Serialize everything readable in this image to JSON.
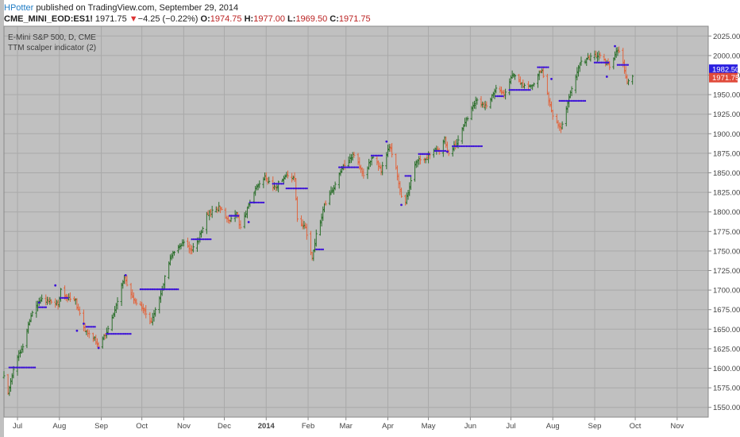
{
  "header": {
    "author": "HPotter",
    "published": "published on TradingView.com, September 29, 2014",
    "symbol": "CME_MINI_EOD:ES1!",
    "last": "1971.75",
    "change": "−4.25 (−0.22%)",
    "o_label": "O:",
    "o_value": "1974.75",
    "h_label": "H:",
    "h_value": "1977.00",
    "l_label": "L:",
    "l_value": "1969.50",
    "c_label": "C:",
    "c_value": "1971.75"
  },
  "overlay": {
    "series_title": "E-Mini S&P 500, D, CME",
    "indicator_title": "TTM scalper indicator (2)"
  },
  "chart_data": {
    "type": "ohlc",
    "y_range": [
      1537.5,
      2037.5
    ],
    "y_ticks": [
      1550,
      1575,
      1600,
      1625,
      1650,
      1675,
      1700,
      1725,
      1750,
      1775,
      1800,
      1825,
      1850,
      1875,
      1900,
      1925,
      1950,
      1975,
      2000,
      2025
    ],
    "y_tick_labels": [
      "1550.00",
      "1575.00",
      "1600.00",
      "1625.00",
      "1650.00",
      "1675.00",
      "1700.00",
      "1725.00",
      "1750.00",
      "1775.00",
      "1800.00",
      "1825.00",
      "1850.00",
      "1875.00",
      "1900.00",
      "1925.00",
      "1950.00",
      "1975.00",
      "2000.00",
      "2025.00"
    ],
    "x_range": [
      "2013-06-21",
      "2014-11-24"
    ],
    "x_ticks": [
      {
        "date": "2013-07-01",
        "label": "Jul",
        "bold": false
      },
      {
        "date": "2013-08-01",
        "label": "Aug",
        "bold": false
      },
      {
        "date": "2013-09-01",
        "label": "Sep",
        "bold": false
      },
      {
        "date": "2013-10-01",
        "label": "Oct",
        "bold": false
      },
      {
        "date": "2013-11-01",
        "label": "Nov",
        "bold": false
      },
      {
        "date": "2013-12-01",
        "label": "Dec",
        "bold": false
      },
      {
        "date": "2014-01-01",
        "label": "2014",
        "bold": true
      },
      {
        "date": "2014-02-01",
        "label": "Feb",
        "bold": false
      },
      {
        "date": "2014-03-01",
        "label": "Mar",
        "bold": false
      },
      {
        "date": "2014-04-01",
        "label": "Apr",
        "bold": false
      },
      {
        "date": "2014-05-01",
        "label": "May",
        "bold": false
      },
      {
        "date": "2014-06-01",
        "label": "Jun",
        "bold": false
      },
      {
        "date": "2014-07-01",
        "label": "Jul",
        "bold": false
      },
      {
        "date": "2014-08-01",
        "label": "Aug",
        "bold": false
      },
      {
        "date": "2014-09-01",
        "label": "Sep",
        "bold": false
      },
      {
        "date": "2014-10-01",
        "label": "Oct",
        "bold": false
      },
      {
        "date": "2014-11-01",
        "label": "Nov",
        "bold": false
      }
    ],
    "close_path": [
      [
        "2013-06-21",
        1588
      ],
      [
        "2013-06-24",
        1570
      ],
      [
        "2013-06-28",
        1600
      ],
      [
        "2013-07-05",
        1630
      ],
      [
        "2013-07-12",
        1672
      ],
      [
        "2013-07-18",
        1688
      ],
      [
        "2013-07-24",
        1686
      ],
      [
        "2013-07-31",
        1682
      ],
      [
        "2013-08-02",
        1700
      ],
      [
        "2013-08-07",
        1690
      ],
      [
        "2013-08-13",
        1686
      ],
      [
        "2013-08-19",
        1650
      ],
      [
        "2013-08-27",
        1638
      ],
      [
        "2013-08-30",
        1626
      ],
      [
        "2013-09-06",
        1650
      ],
      [
        "2013-09-12",
        1680
      ],
      [
        "2013-09-18",
        1718
      ],
      [
        "2013-09-24",
        1690
      ],
      [
        "2013-10-01",
        1678
      ],
      [
        "2013-10-08",
        1658
      ],
      [
        "2013-10-16",
        1702
      ],
      [
        "2013-10-22",
        1742
      ],
      [
        "2013-10-28",
        1755
      ],
      [
        "2013-11-01",
        1760
      ],
      [
        "2013-11-07",
        1750
      ],
      [
        "2013-11-12",
        1766
      ],
      [
        "2013-11-18",
        1795
      ],
      [
        "2013-11-27",
        1806
      ],
      [
        "2013-12-05",
        1788
      ],
      [
        "2013-12-10",
        1800
      ],
      [
        "2013-12-13",
        1778
      ],
      [
        "2013-12-18",
        1805
      ],
      [
        "2013-12-24",
        1830
      ],
      [
        "2013-12-31",
        1845
      ],
      [
        "2014-01-06",
        1830
      ],
      [
        "2014-01-10",
        1836
      ],
      [
        "2014-01-15",
        1846
      ],
      [
        "2014-01-22",
        1841
      ],
      [
        "2014-01-24",
        1790
      ],
      [
        "2014-01-30",
        1780
      ],
      [
        "2014-02-04",
        1740
      ],
      [
        "2014-02-07",
        1770
      ],
      [
        "2014-02-13",
        1808
      ],
      [
        "2014-02-20",
        1832
      ],
      [
        "2014-02-27",
        1858
      ],
      [
        "2014-03-07",
        1875
      ],
      [
        "2014-03-14",
        1845
      ],
      [
        "2014-03-21",
        1872
      ],
      [
        "2014-03-27",
        1852
      ],
      [
        "2014-04-02",
        1885
      ],
      [
        "2014-04-07",
        1856
      ],
      [
        "2014-04-11",
        1818
      ],
      [
        "2014-04-14",
        1812
      ],
      [
        "2014-04-22",
        1866
      ],
      [
        "2014-04-28",
        1866
      ],
      [
        "2014-05-05",
        1880
      ],
      [
        "2014-05-09",
        1876
      ],
      [
        "2014-05-13",
        1894
      ],
      [
        "2014-05-16",
        1872
      ],
      [
        "2014-05-22",
        1890
      ],
      [
        "2014-05-29",
        1918
      ],
      [
        "2014-06-06",
        1945
      ],
      [
        "2014-06-13",
        1933
      ],
      [
        "2014-06-20",
        1958
      ],
      [
        "2014-06-26",
        1950
      ],
      [
        "2014-07-03",
        1978
      ],
      [
        "2014-07-10",
        1960
      ],
      [
        "2014-07-17",
        1962
      ],
      [
        "2014-07-24",
        1983
      ],
      [
        "2014-07-31",
        1927
      ],
      [
        "2014-08-07",
        1906
      ],
      [
        "2014-08-14",
        1952
      ],
      [
        "2014-08-21",
        1990
      ],
      [
        "2014-08-28",
        1996
      ],
      [
        "2014-09-05",
        2002
      ],
      [
        "2014-09-12",
        1985
      ],
      [
        "2014-09-18",
        2008
      ],
      [
        "2014-09-22",
        1990
      ],
      [
        "2014-09-25",
        1966
      ],
      [
        "2014-09-29",
        1971.75
      ]
    ],
    "scalper_segments": [
      {
        "from": "2013-06-25",
        "to": "2013-07-15",
        "y": 1601
      },
      {
        "from": "2013-07-17",
        "to": "2013-07-22",
        "y": 1678
      },
      {
        "from": "2013-08-02",
        "to": "2013-08-07",
        "y": 1690
      },
      {
        "from": "2013-08-21",
        "to": "2013-08-28",
        "y": 1653
      },
      {
        "from": "2013-09-05",
        "to": "2013-09-23",
        "y": 1644
      },
      {
        "from": "2013-09-30",
        "to": "2013-10-28",
        "y": 1701
      },
      {
        "from": "2013-11-07",
        "to": "2013-11-21",
        "y": 1765
      },
      {
        "from": "2013-12-05",
        "to": "2013-12-12",
        "y": 1795
      },
      {
        "from": "2013-12-20",
        "to": "2013-12-31",
        "y": 1812
      },
      {
        "from": "2014-01-06",
        "to": "2014-01-14",
        "y": 1836
      },
      {
        "from": "2014-01-16",
        "to": "2014-02-01",
        "y": 1830
      },
      {
        "from": "2014-02-07",
        "to": "2014-02-13",
        "y": 1752
      },
      {
        "from": "2014-02-24",
        "to": "2014-03-10",
        "y": 1857
      },
      {
        "from": "2014-03-20",
        "to": "2014-03-28",
        "y": 1872
      },
      {
        "from": "2014-04-14",
        "to": "2014-04-18",
        "y": 1846
      },
      {
        "from": "2014-04-24",
        "to": "2014-05-02",
        "y": 1874
      },
      {
        "from": "2014-05-06",
        "to": "2014-05-14",
        "y": 1878
      },
      {
        "from": "2014-05-19",
        "to": "2014-06-10",
        "y": 1884
      },
      {
        "from": "2014-06-20",
        "to": "2014-06-26",
        "y": 1948
      },
      {
        "from": "2014-06-30",
        "to": "2014-07-16",
        "y": 1956
      },
      {
        "from": "2014-07-21",
        "to": "2014-07-29",
        "y": 1985
      },
      {
        "from": "2014-08-06",
        "to": "2014-08-25",
        "y": 1942
      },
      {
        "from": "2014-09-01",
        "to": "2014-09-12",
        "y": 1991
      },
      {
        "from": "2014-09-18",
        "to": "2014-09-26",
        "y": 1988
      }
    ],
    "scalper_points": [
      {
        "x": "2013-07-17",
        "y": 1684
      },
      {
        "x": "2013-07-29",
        "y": 1706
      },
      {
        "x": "2013-08-14",
        "y": 1648
      },
      {
        "x": "2013-08-19",
        "y": 1657
      },
      {
        "x": "2013-08-30",
        "y": 1626
      },
      {
        "x": "2013-09-19",
        "y": 1719
      },
      {
        "x": "2013-12-19",
        "y": 1787
      },
      {
        "x": "2014-03-31",
        "y": 1890
      },
      {
        "x": "2014-04-11",
        "y": 1809
      },
      {
        "x": "2014-05-15",
        "y": 1877
      },
      {
        "x": "2014-07-31",
        "y": 1970
      },
      {
        "x": "2014-09-10",
        "y": 1973
      },
      {
        "x": "2014-09-16",
        "y": 2012
      }
    ],
    "price_markers": [
      {
        "value": 1982.5,
        "label": "1982.50",
        "color": "#2a1fe0"
      },
      {
        "value": 1971.75,
        "label": "1971.75",
        "color": "#e04a3a"
      }
    ],
    "colors": {
      "plot_bg": "#c0c0c0",
      "grid": "#a9a9a9",
      "up_bar": "#2a6e2a",
      "down_bar": "#e0653e",
      "scalper": "#3b10d8",
      "axis_text": "#444444"
    }
  }
}
